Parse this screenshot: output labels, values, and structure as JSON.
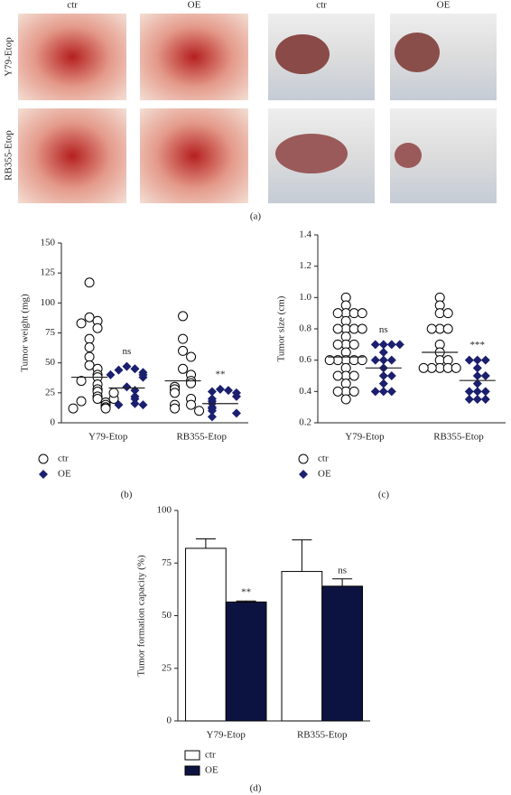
{
  "figure": {
    "column_labels": [
      "ctr",
      "OE",
      "ctr",
      "OE"
    ],
    "row_labels": [
      "Y79-Etop",
      "RB355-Etop"
    ],
    "panel_label": "(a)"
  },
  "chart_data": [
    {
      "type": "scatter",
      "panel_label": "(b)",
      "y_label": "Tumor weight (mg)",
      "categories": [
        "Y79-Etop",
        "RB355-Etop"
      ],
      "ylim": [
        0,
        150
      ],
      "yticks": [
        0,
        25,
        50,
        75,
        100,
        125,
        150
      ],
      "legend": "bottom-left",
      "series": [
        {
          "name": "ctr",
          "color": "#000000",
          "marker": "open-circle",
          "values": [
            [
              117,
              88,
              85,
              83,
              79,
              70,
              63,
              55,
              48,
              45,
              40,
              38,
              35,
              32,
              28,
              26,
              22,
              20,
              18,
              17,
              15,
              13,
              12,
              12,
              20,
              25
            ],
            [
              89,
              70,
              60,
              55,
              45,
              40,
              35,
              33,
              30,
              28,
              25,
              20,
              15,
              15,
              12,
              10
            ]
          ],
          "means": [
            38,
            35
          ]
        },
        {
          "name": "OE",
          "color": "#1a1f6e",
          "marker": "diamond",
          "values": [
            [
              47,
              45,
              44,
              42,
              40,
              40,
              38,
              30,
              27,
              22,
              20,
              16,
              15,
              15
            ],
            [
              28,
              27,
              26,
              25,
              22,
              20,
              18,
              16,
              13,
              12,
              10,
              8,
              5
            ]
          ],
          "means": [
            29,
            16
          ],
          "labels": [
            "ns",
            "**"
          ]
        }
      ]
    },
    {
      "type": "scatter",
      "panel_label": "(c)",
      "y_label": "Tumor size (cm)",
      "categories": [
        "Y79-Etop",
        "RB355-Etop"
      ],
      "ylim": [
        0.2,
        1.4
      ],
      "yticks": [
        0.2,
        0.4,
        0.6,
        0.8,
        {
          "value": 1,
          "label": "1.0"
        },
        1.2,
        1.4
      ],
      "legend": "bottom-left",
      "series": [
        {
          "name": "ctr",
          "color": "#000000",
          "marker": "open-circle",
          "values": [
            [
              1,
              0.95,
              0.9,
              0.9,
              0.9,
              0.9,
              0.85,
              0.8,
              0.8,
              0.8,
              0.8,
              0.75,
              0.7,
              0.7,
              0.7,
              0.65,
              0.6,
              0.6,
              0.6,
              0.6,
              0.6,
              0.55,
              0.5,
              0.5,
              0.5,
              0.45,
              0.4,
              0.4,
              0.4,
              0.35
            ],
            [
              1,
              0.95,
              0.9,
              0.9,
              0.8,
              0.8,
              0.8,
              0.7,
              0.65,
              0.6,
              0.6,
              0.55,
              0.55,
              0.55,
              0.55,
              0.55
            ]
          ],
          "means": [
            0.62,
            0.65
          ]
        },
        {
          "name": "OE",
          "color": "#1a1f6e",
          "marker": "diamond",
          "values": [
            [
              0.7,
              0.7,
              0.7,
              0.7,
              0.65,
              0.6,
              0.6,
              0.6,
              0.55,
              0.5,
              0.5,
              0.45,
              0.4,
              0.4,
              0.4
            ],
            [
              0.6,
              0.6,
              0.6,
              0.55,
              0.5,
              0.5,
              0.45,
              0.4,
              0.4,
              0.4,
              0.35,
              0.35,
              0.35
            ]
          ],
          "means": [
            0.55,
            0.47
          ],
          "labels": [
            "ns",
            "***"
          ]
        }
      ]
    },
    {
      "type": "bar",
      "panel_label": "(d)",
      "y_label": "Tumor formation capacity (%)",
      "categories": [
        "Y79-Etop",
        "RB355-Etop"
      ],
      "ylim": [
        0,
        100
      ],
      "yticks": [
        0,
        25,
        50,
        75,
        100
      ],
      "legend": "bottom-left",
      "series": [
        {
          "name": "ctr",
          "color": "#ffffff",
          "values": [
            82,
            71
          ],
          "errors": [
            4.5,
            15
          ]
        },
        {
          "name": "OE",
          "color": "#0d1340",
          "values": [
            56.5,
            64
          ],
          "errors": [
            0.5,
            3.5
          ],
          "labels": [
            "**",
            "ns"
          ]
        }
      ]
    }
  ]
}
